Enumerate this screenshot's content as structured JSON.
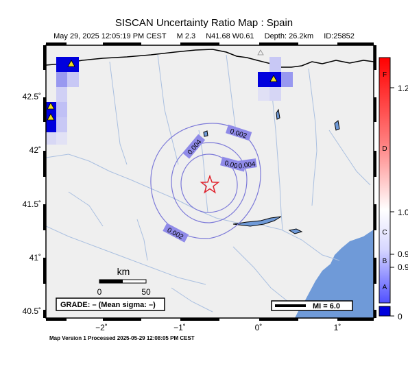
{
  "title": "SISCAN Uncertainty Ratio Map : Spain",
  "subtitle": {
    "date": "May 29, 2025 12:05:19 PM CEST",
    "magnitude": "M 2.3",
    "location": "N41.68 W0.61",
    "depth": "Depth: 26.2km",
    "id": "ID:25852"
  },
  "y_ticks": [
    "42.5˚",
    "42˚",
    "41.5˚",
    "41˚",
    "40.5˚"
  ],
  "x_ticks": [
    "−2˚",
    "−1˚",
    "0˚",
    "1˚"
  ],
  "contour_labels": [
    "0.002",
    "0.004",
    "0.006",
    "0.004",
    "0.002"
  ],
  "scale": {
    "unit": "km",
    "start": "0",
    "end": "50"
  },
  "grade_box": "GRADE: – (Mean sigma: –)",
  "mi_legend": "MI = 6.0",
  "colorbar": {
    "letters": [
      "F",
      "D",
      "C",
      "B",
      "A"
    ],
    "values": [
      "1.2",
      "1.0",
      "0.9",
      "0.9",
      "0"
    ]
  },
  "footer": "Map Version 1 Processed 2025-05-29 12:08:05 PM CEST",
  "colors": {
    "land": "#efefef",
    "sea": "#6f9ad8",
    "river": "#a9bfe0",
    "contour": "#7b78d8",
    "epicenter": "#e0202a",
    "station": "#f0e020",
    "cell_high": "#0000dd"
  },
  "icons": {
    "epicenter": "star-icon",
    "station": "triangle-icon"
  }
}
